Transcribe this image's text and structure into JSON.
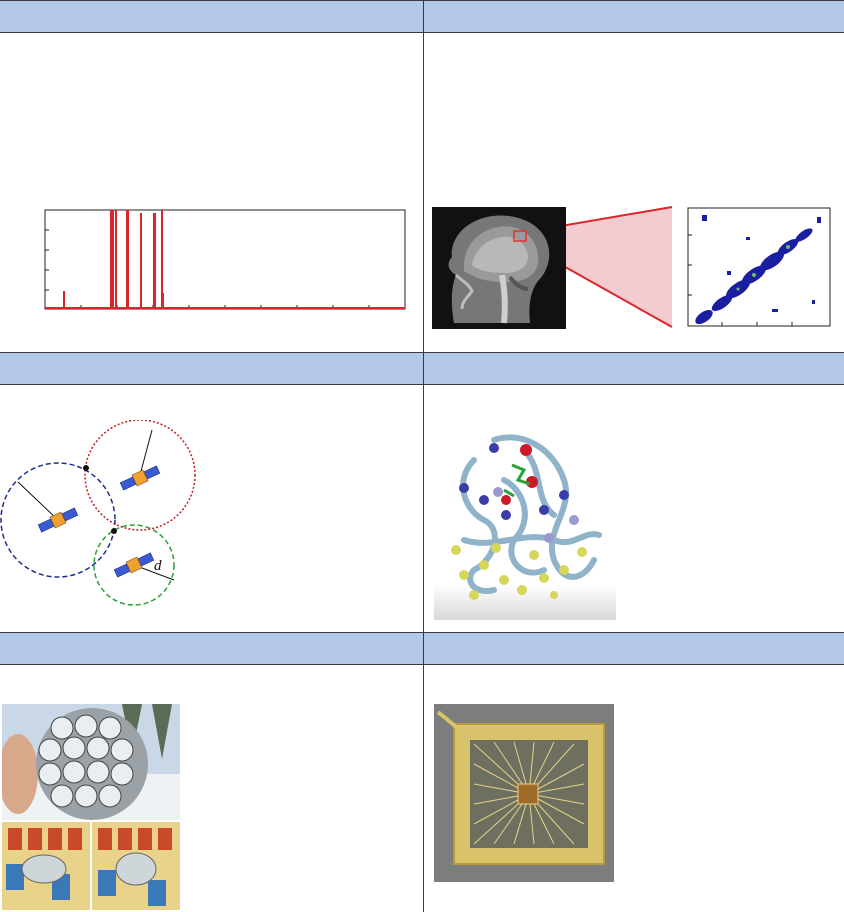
{
  "panels": [
    {
      "id": "spectrum",
      "header": ""
    },
    {
      "id": "mri",
      "header": ""
    },
    {
      "id": "gps",
      "header": ""
    },
    {
      "id": "protein",
      "header": ""
    },
    {
      "id": "lens-array",
      "header": ""
    },
    {
      "id": "chip",
      "header": ""
    }
  ],
  "gps": {
    "distance_label": "d"
  },
  "colors": {
    "header_bg": "#b4c9e6",
    "spectrum_line": "#d8262b",
    "circle_blue": "#1b2f8f",
    "circle_red": "#c8181e",
    "circle_green": "#2aa03a",
    "heatmap_blue": "#1a1ea0"
  }
}
